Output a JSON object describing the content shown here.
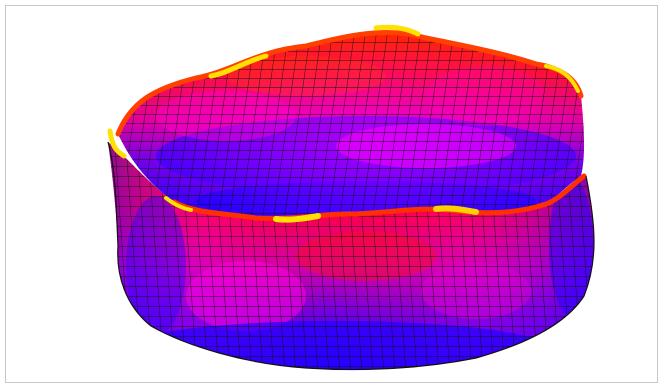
{
  "figure": {
    "kind": "3d-mesh-surface",
    "shape": "open-bowl-with-wavy-rim",
    "colormap": [
      "#2200ff",
      "#6a00e6",
      "#ff00e0",
      "#ff0040",
      "#ff2a00",
      "#ffe000"
    ],
    "rim_color": "#ffe000",
    "mesh_line_color": "#111111"
  }
}
